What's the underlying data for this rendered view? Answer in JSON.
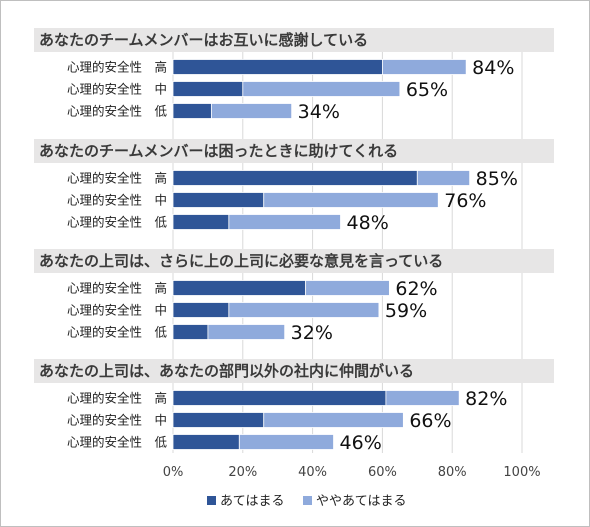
{
  "chart_data": {
    "type": "bar",
    "orientation": "horizontal",
    "stacked": true,
    "xlim": [
      0,
      100
    ],
    "xticks": [
      "0%",
      "20%",
      "40%",
      "60%",
      "80%",
      "100%"
    ],
    "grid": true,
    "legend_position": "bottom",
    "series_names": [
      "あてはまる",
      "ややあてはまる"
    ],
    "colors": {
      "applies": "#2f5597",
      "somewhat": "#8faadc",
      "header_bg": "#e7e6e6",
      "grid": "#d9d9d9"
    },
    "groups": [
      {
        "title": "あなたのチームメンバーはお互いに感謝している",
        "rows": [
          {
            "label": "心理的安全性　高",
            "applies": 60,
            "somewhat": 24,
            "total_label": "84%"
          },
          {
            "label": "心理的安全性　中",
            "applies": 20,
            "somewhat": 45,
            "total_label": "65%"
          },
          {
            "label": "心理的安全性　低",
            "applies": 11,
            "somewhat": 23,
            "total_label": "34%"
          }
        ]
      },
      {
        "title": "あなたのチームメンバーは困ったときに助けてくれる",
        "rows": [
          {
            "label": "心理的安全性　高",
            "applies": 70,
            "somewhat": 15,
            "total_label": "85%"
          },
          {
            "label": "心理的安全性　中",
            "applies": 26,
            "somewhat": 50,
            "total_label": "76%"
          },
          {
            "label": "心理的安全性　低",
            "applies": 16,
            "somewhat": 32,
            "total_label": "48%"
          }
        ]
      },
      {
        "title": "あなたの上司は、さらに上の上司に必要な意見を言っている",
        "rows": [
          {
            "label": "心理的安全性　高",
            "applies": 38,
            "somewhat": 24,
            "total_label": "62%"
          },
          {
            "label": "心理的安全性　中",
            "applies": 16,
            "somewhat": 43,
            "total_label": "59%"
          },
          {
            "label": "心理的安全性　低",
            "applies": 10,
            "somewhat": 22,
            "total_label": "32%"
          }
        ]
      },
      {
        "title": "あなたの上司は、あなたの部門以外の社内に仲間がいる",
        "rows": [
          {
            "label": "心理的安全性　高",
            "applies": 61,
            "somewhat": 21,
            "total_label": "82%"
          },
          {
            "label": "心理的安全性　中",
            "applies": 26,
            "somewhat": 40,
            "total_label": "66%"
          },
          {
            "label": "心理的安全性　低",
            "applies": 19,
            "somewhat": 27,
            "total_label": "46%"
          }
        ]
      }
    ]
  }
}
